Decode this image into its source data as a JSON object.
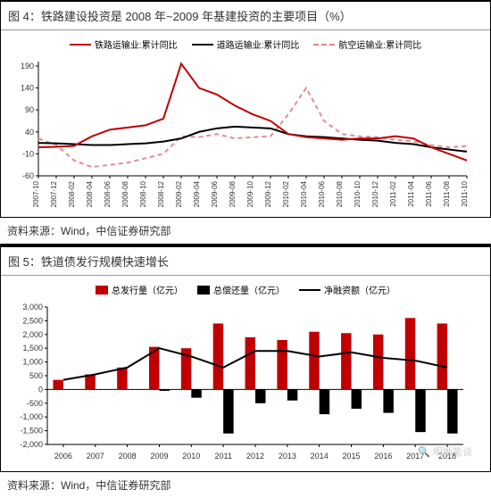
{
  "chart4": {
    "title": "图 4：铁路建设投资是 2008 年~2009 年基建投资的主要项目（%）",
    "type": "line",
    "legend": [
      {
        "label": "铁路运输业:累计同比",
        "color": "#c00000",
        "style": "solid"
      },
      {
        "label": "道路运输业:累计同比",
        "color": "#000000",
        "style": "solid"
      },
      {
        "label": "航空运输业:累计同比",
        "color": "#e58b8b",
        "style": "dashed"
      }
    ],
    "ylim": [
      -60,
      200
    ],
    "ytick_step": 50,
    "yticks": [
      -60,
      -10,
      40,
      90,
      140,
      190
    ],
    "x_labels": [
      "2007-10",
      "2007-12",
      "2008-02",
      "2008-04",
      "2008-06",
      "2008-08",
      "2008-10",
      "2008-12",
      "2009-02",
      "2009-04",
      "2009-06",
      "2009-08",
      "2009-10",
      "2009-12",
      "2010-02",
      "2010-04",
      "2010-06",
      "2010-08",
      "2010-10",
      "2010-12",
      "2011-02",
      "2011-04",
      "2011-06",
      "2011-08",
      "2011-10"
    ],
    "series": {
      "rail": [
        5,
        6,
        8,
        30,
        45,
        50,
        55,
        70,
        195,
        140,
        125,
        100,
        80,
        65,
        35,
        28,
        25,
        22,
        25,
        25,
        30,
        25,
        5,
        -10,
        -25
      ],
      "road": [
        15,
        14,
        12,
        10,
        10,
        12,
        14,
        18,
        25,
        40,
        48,
        52,
        50,
        48,
        35,
        30,
        28,
        25,
        22,
        20,
        15,
        12,
        5,
        0,
        -5
      ],
      "air": [
        25,
        10,
        -25,
        -40,
        -35,
        -30,
        -20,
        -10,
        30,
        28,
        35,
        25,
        28,
        30,
        80,
        140,
        65,
        35,
        30,
        28,
        22,
        18,
        10,
        5,
        8
      ]
    },
    "line_width": 2,
    "background_color": "#ffffff",
    "source": "资料来源：Wind，中信证券研究部"
  },
  "chart5": {
    "title": "图 5：铁道债发行规模快速增长",
    "type": "bar_line",
    "legend": [
      {
        "label": "总发行量（亿元）",
        "color": "#c00000",
        "kind": "bar"
      },
      {
        "label": "总偿还量（亿元）",
        "color": "#000000",
        "kind": "bar"
      },
      {
        "label": "净融资额（亿元）",
        "color": "#000000",
        "kind": "line"
      }
    ],
    "ylim": [
      -2000,
      3000
    ],
    "ytick_step": 500,
    "yticks": [
      -2000,
      -1500,
      -1000,
      -500,
      0,
      500,
      1000,
      1500,
      2000,
      2500,
      3000
    ],
    "x_labels": [
      "2006",
      "2007",
      "2008",
      "2009",
      "2010",
      "2011",
      "2012",
      "2013",
      "2014",
      "2015",
      "2016",
      "2017",
      "2018"
    ],
    "issuance": [
      350,
      550,
      800,
      1550,
      1500,
      2400,
      1900,
      1800,
      2100,
      2050,
      2000,
      2600,
      2400
    ],
    "repayment": [
      0,
      0,
      0,
      -50,
      -300,
      -1600,
      -500,
      -400,
      -900,
      -700,
      -850,
      -1550,
      -1600
    ],
    "net": [
      350,
      550,
      800,
      1500,
      1200,
      800,
      1400,
      1400,
      1200,
      1350,
      1150,
      1050,
      800
    ],
    "bar_width": 0.32,
    "background_color": "#ffffff",
    "source": "资料来源：Wind，中信证券研究部",
    "watermark": "🔍 明晰笔谈"
  }
}
